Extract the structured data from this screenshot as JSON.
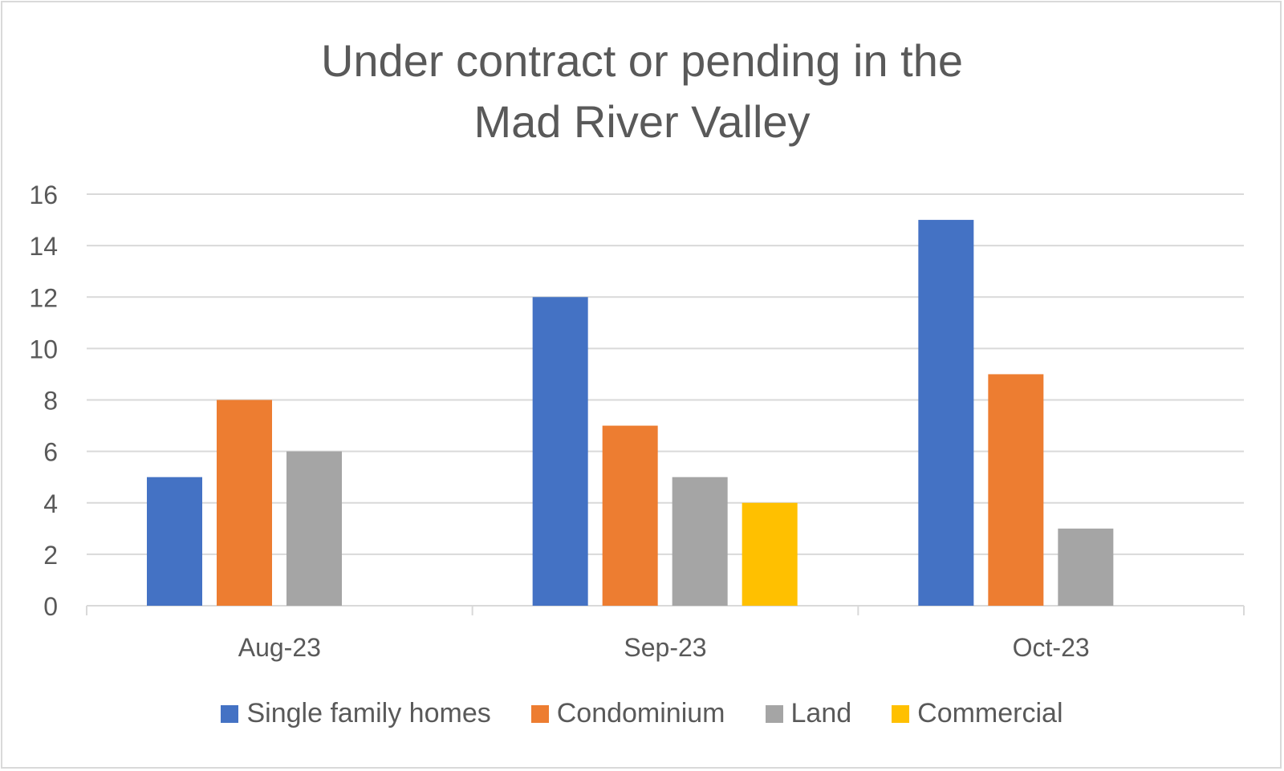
{
  "chart_data": {
    "type": "bar",
    "title_lines": [
      "Under contract or pending in the",
      "Mad River Valley"
    ],
    "categories": [
      "Aug-23",
      "Sep-23",
      "Oct-23"
    ],
    "series": [
      {
        "name": "Single family homes",
        "color": "#4472c4",
        "values": [
          5,
          12,
          15
        ]
      },
      {
        "name": "Condominium",
        "color": "#ed7d31",
        "values": [
          8,
          7,
          9
        ]
      },
      {
        "name": "Land",
        "color": "#a5a5a5",
        "values": [
          6,
          5,
          3
        ]
      },
      {
        "name": "Commercial",
        "color": "#ffc000",
        "values": [
          0,
          4,
          0
        ]
      }
    ],
    "ylim": [
      0,
      16
    ],
    "yticks": [
      "0",
      "2",
      "4",
      "6",
      "8",
      "10",
      "12",
      "14",
      "16"
    ],
    "grid": true,
    "legend_position": "bottom"
  }
}
